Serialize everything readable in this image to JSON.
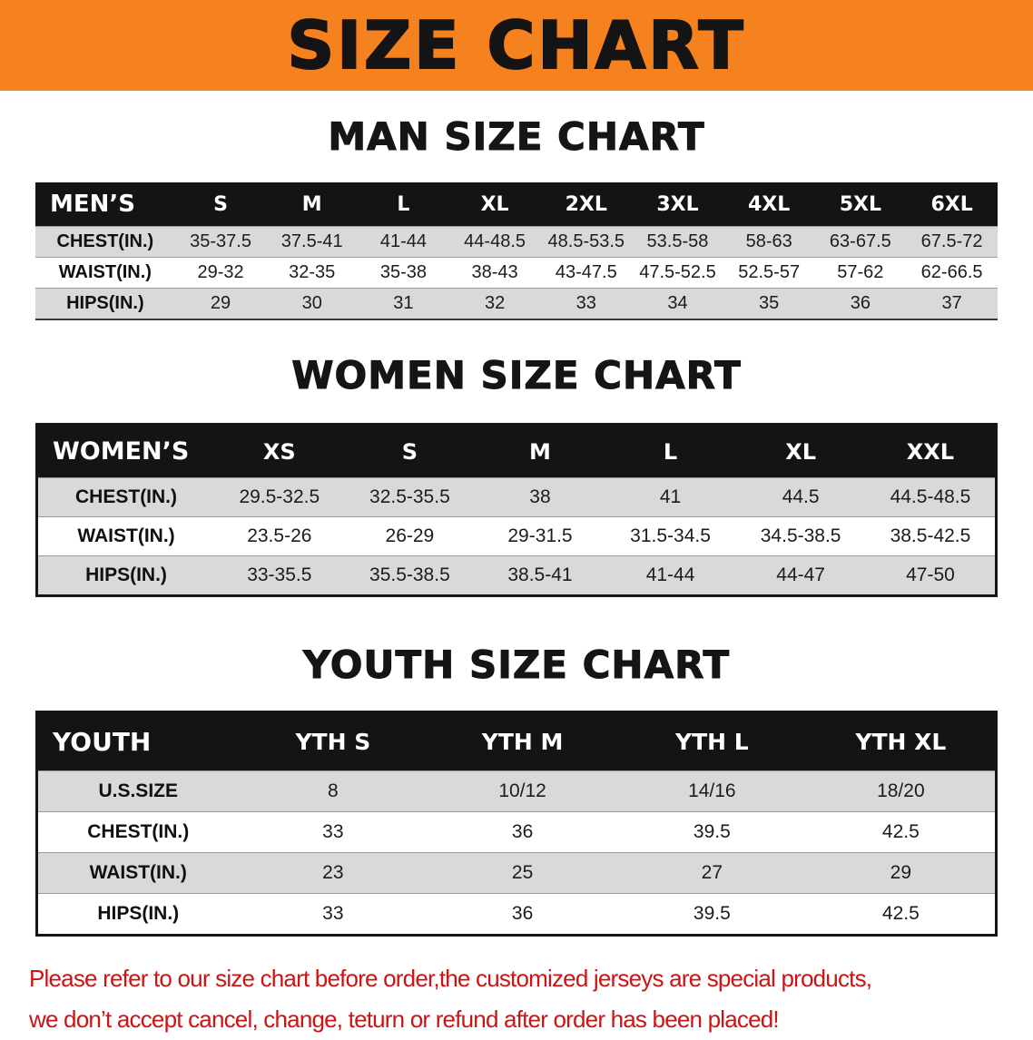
{
  "banner": {
    "title": "SIZE CHART",
    "background_color": "#f5821f"
  },
  "sections": [
    {
      "id": "men",
      "heading": "MAN SIZE CHART",
      "table": {
        "header": [
          "MEN’S",
          "S",
          "M",
          "L",
          "XL",
          "2XL",
          "3XL",
          "4XL",
          "5XL",
          "6XL"
        ],
        "rows": [
          [
            "CHEST(IN.)",
            "35-37.5",
            "37.5-41",
            "41-44",
            "44-48.5",
            "48.5-53.5",
            "53.5-58",
            "58-63",
            "63-67.5",
            "67.5-72"
          ],
          [
            "WAIST(IN.)",
            "29-32",
            "32-35",
            "35-38",
            "38-43",
            "43-47.5",
            "47.5-52.5",
            "52.5-57",
            "57-62",
            "62-66.5"
          ],
          [
            "HIPS(IN.)",
            "29",
            "30",
            "31",
            "32",
            "33",
            "34",
            "35",
            "36",
            "37"
          ]
        ]
      }
    },
    {
      "id": "women",
      "heading": "WOMEN SIZE CHART",
      "table": {
        "header": [
          "WOMEN’S",
          "XS",
          "S",
          "M",
          "L",
          "XL",
          "XXL"
        ],
        "rows": [
          [
            "CHEST(IN.)",
            "29.5-32.5",
            "32.5-35.5",
            "38",
            "41",
            "44.5",
            "44.5-48.5"
          ],
          [
            "WAIST(IN.)",
            "23.5-26",
            "26-29",
            "29-31.5",
            "31.5-34.5",
            "34.5-38.5",
            "38.5-42.5"
          ],
          [
            "HIPS(IN.)",
            "33-35.5",
            "35.5-38.5",
            "38.5-41",
            "41-44",
            "44-47",
            "47-50"
          ]
        ]
      }
    },
    {
      "id": "youth",
      "heading": "YOUTH SIZE CHART",
      "table": {
        "header": [
          "YOUTH",
          "YTH S",
          "YTH M",
          "YTH L",
          "YTH XL"
        ],
        "rows": [
          [
            "U.S.SIZE",
            "8",
            "10/12",
            "14/16",
            "18/20"
          ],
          [
            "CHEST(IN.)",
            "33",
            "36",
            "39.5",
            "42.5"
          ],
          [
            "WAIST(IN.)",
            "23",
            "25",
            "27",
            "29"
          ],
          [
            "HIPS(IN.)",
            "33",
            "36",
            "39.5",
            "42.5"
          ]
        ]
      }
    }
  ],
  "disclaimer": {
    "color": "#cc1414",
    "line1": "Please refer to our size chart before order,the customized jerseys are special products,",
    "line2": "we don’t accept cancel, change, teturn or refund after order has been placed!"
  }
}
